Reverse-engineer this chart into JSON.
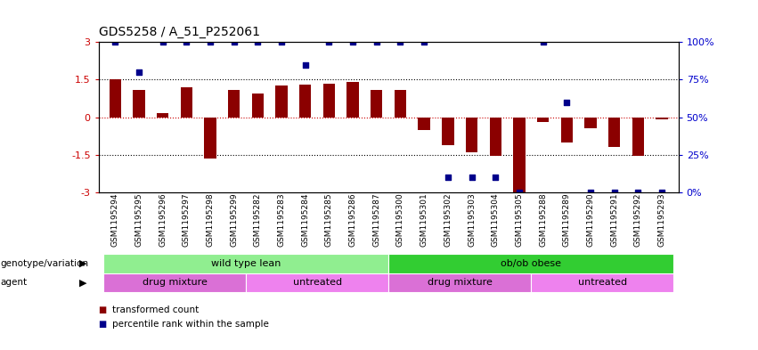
{
  "title": "GDS5258 / A_51_P252061",
  "samples": [
    "GSM1195294",
    "GSM1195295",
    "GSM1195296",
    "GSM1195297",
    "GSM1195298",
    "GSM1195299",
    "GSM1195282",
    "GSM1195283",
    "GSM1195284",
    "GSM1195285",
    "GSM1195286",
    "GSM1195287",
    "GSM1195300",
    "GSM1195301",
    "GSM1195302",
    "GSM1195303",
    "GSM1195304",
    "GSM1195305",
    "GSM1195288",
    "GSM1195289",
    "GSM1195290",
    "GSM1195291",
    "GSM1195292",
    "GSM1195293"
  ],
  "bar_values": [
    1.5,
    1.1,
    0.15,
    1.2,
    -1.65,
    1.1,
    0.95,
    1.25,
    1.3,
    1.35,
    1.4,
    1.1,
    1.1,
    -0.5,
    -1.1,
    -1.4,
    -1.55,
    -3.0,
    -0.2,
    -1.0,
    -0.45,
    -1.2,
    -1.55,
    -0.1
  ],
  "dot_values": [
    100,
    80,
    100,
    100,
    100,
    100,
    100,
    100,
    85,
    100,
    100,
    100,
    100,
    100,
    10,
    10,
    10,
    0,
    100,
    60,
    0,
    0,
    0,
    0
  ],
  "ylim": [
    -3.0,
    3.0
  ],
  "yticks_left": [
    -3,
    -1.5,
    0,
    1.5,
    3
  ],
  "yticks_right": [
    0,
    25,
    50,
    75,
    100
  ],
  "hlines_dotted": [
    1.5,
    -1.5
  ],
  "hline_red": 0,
  "bar_color": "#8B0000",
  "dot_color": "#00008B",
  "genotype_row": [
    {
      "label": "wild type lean",
      "start": 0,
      "end": 12,
      "color": "#90EE90"
    },
    {
      "label": "ob/ob obese",
      "start": 12,
      "end": 24,
      "color": "#32CD32"
    }
  ],
  "agent_row": [
    {
      "label": "drug mixture",
      "start": 0,
      "end": 6,
      "color": "#DA70D6"
    },
    {
      "label": "untreated",
      "start": 6,
      "end": 12,
      "color": "#EE82EE"
    },
    {
      "label": "drug mixture",
      "start": 12,
      "end": 18,
      "color": "#DA70D6"
    },
    {
      "label": "untreated",
      "start": 18,
      "end": 24,
      "color": "#EE82EE"
    }
  ],
  "bar_width": 0.5,
  "title_fontsize": 10
}
